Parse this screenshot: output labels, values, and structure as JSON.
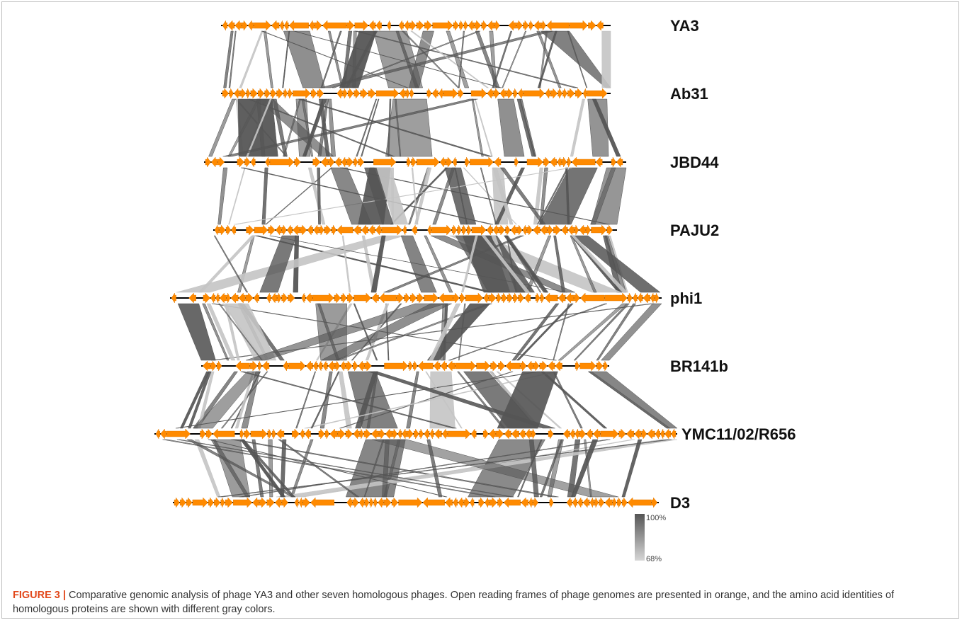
{
  "figure": {
    "label": "FIGURE 3 |",
    "caption": " Comparative genomic analysis of phage YA3 and other seven homologous phages. Open reading frames of phage genomes are presented in orange, and the amino acid identities of homologous proteins are shown with different gray colors."
  },
  "genomes": [
    {
      "name": "YA3"
    },
    {
      "name": "Ab31"
    },
    {
      "name": "JBD44"
    },
    {
      "name": "PAJU2"
    },
    {
      "name": "phi1"
    },
    {
      "name": "BR141b"
    },
    {
      "name": "YMC11/02/R656"
    },
    {
      "name": "D3"
    }
  ],
  "legend": {
    "max_label": "100%",
    "min_label": "68%",
    "max_color": "#555555",
    "min_color": "#d6d6d6"
  },
  "colors": {
    "orf": "#ff8a00",
    "backbone": "#000000",
    "homology_dark": "#555555",
    "homology_light": "#c4c4c4"
  }
}
